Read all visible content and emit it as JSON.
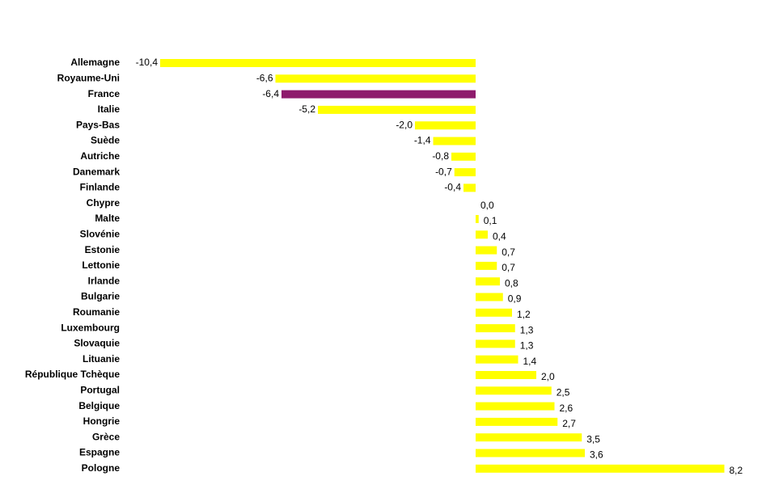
{
  "chart_data": {
    "type": "hbar",
    "categories": [
      "Allemagne",
      "Royaume-Uni",
      "France",
      "Italie",
      "Pays-Bas",
      "Suède",
      "Autriche",
      "Danemark",
      "Finlande",
      "Chypre",
      "Malte",
      "Slovénie",
      "Estonie",
      "Lettonie",
      "Irlande",
      "Bulgarie",
      "Roumanie",
      "Luxembourg",
      "Slovaquie",
      "Lituanie",
      "République Tchèque",
      "Portugal",
      "Belgique",
      "Hongrie",
      "Grèce",
      "Espagne",
      "Pologne"
    ],
    "values": [
      -10.4,
      -6.6,
      -6.4,
      -5.2,
      -2.0,
      -1.4,
      -0.8,
      -0.7,
      -0.4,
      0.0,
      0.1,
      0.4,
      0.7,
      0.7,
      0.8,
      0.9,
      1.2,
      1.3,
      1.3,
      1.4,
      2.0,
      2.5,
      2.6,
      2.7,
      3.5,
      3.6,
      8.2
    ],
    "value_labels": [
      "-10,4",
      "-6,6",
      "-6,4",
      "-5,2",
      "-2,0",
      "-1,4",
      "-0,8",
      "-0,7",
      "-0,4",
      "0,0",
      "0,1",
      "0,4",
      "0,7",
      "0,7",
      "0,8",
      "0,9",
      "1,2",
      "1,3",
      "1,3",
      "1,4",
      "2,0",
      "2,5",
      "2,6",
      "2,7",
      "3,5",
      "3,6",
      "8,2"
    ],
    "colors": [
      "#ffff00",
      "#ffff00",
      "#8e1b6c",
      "#ffff00",
      "#ffff00",
      "#ffff00",
      "#ffff00",
      "#ffff00",
      "#ffff00",
      "#ffff00",
      "#ffff00",
      "#ffff00",
      "#ffff00",
      "#ffff00",
      "#ffff00",
      "#ffff00",
      "#ffff00",
      "#ffff00",
      "#ffff00",
      "#ffff00",
      "#ffff00",
      "#ffff00",
      "#ffff00",
      "#ffff00",
      "#ffff00",
      "#ffff00",
      "#ffff00"
    ],
    "xlim": [
      -12,
      10
    ]
  }
}
